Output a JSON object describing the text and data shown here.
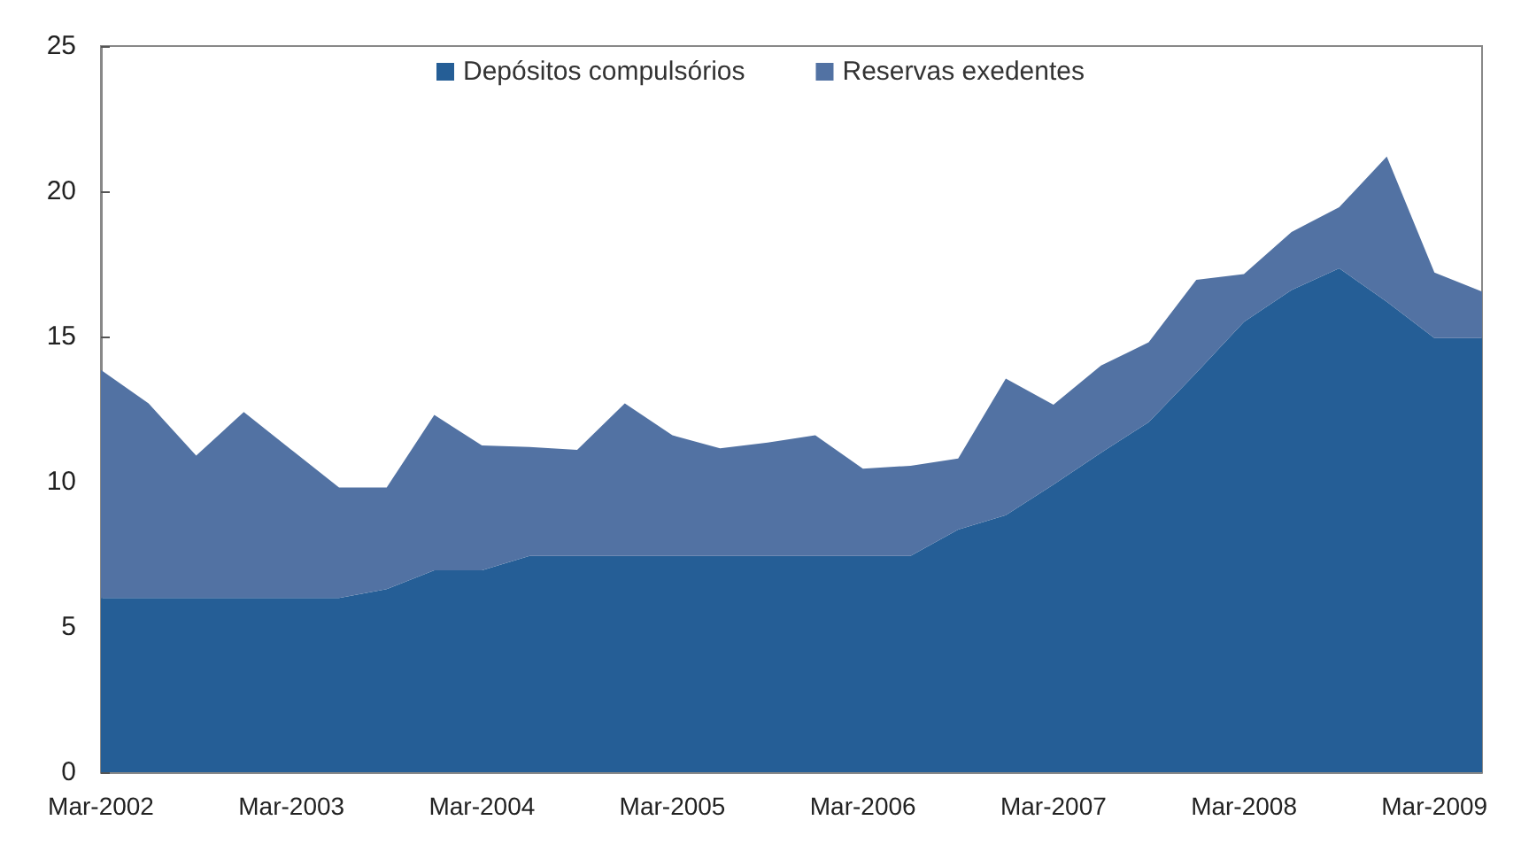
{
  "chart_data": {
    "type": "area",
    "stacked": true,
    "legend": "top",
    "grid": false,
    "categories": [
      "Mar-2002",
      null,
      null,
      null,
      "Mar-2003",
      null,
      null,
      null,
      "Mar-2004",
      null,
      null,
      null,
      "Mar-2005",
      null,
      null,
      null,
      "Mar-2006",
      null,
      null,
      null,
      "Mar-2007",
      null,
      null,
      null,
      "Mar-2008",
      null,
      null,
      null,
      "Mar-2009",
      null
    ],
    "ylim": [
      0,
      25
    ],
    "yticks": [
      0,
      5,
      10,
      15,
      20,
      25
    ],
    "series": [
      {
        "name": "Depósitos compulsórios",
        "color": "#255e96",
        "values": [
          6.0,
          6.0,
          6.0,
          6.0,
          6.0,
          6.0,
          6.3,
          6.95,
          6.95,
          7.45,
          7.45,
          7.45,
          7.45,
          7.45,
          7.45,
          7.45,
          7.45,
          7.45,
          8.35,
          8.85,
          9.9,
          11.0,
          12.05,
          13.75,
          15.5,
          16.6,
          17.35,
          16.2,
          14.95,
          14.95
        ]
      },
      {
        "name": "Reservas exedentes",
        "color": "#5272a3",
        "values": [
          7.85,
          6.7,
          4.9,
          6.4,
          5.1,
          3.8,
          3.5,
          5.35,
          4.3,
          3.75,
          3.65,
          5.25,
          4.15,
          3.7,
          3.9,
          4.15,
          3.0,
          3.1,
          2.45,
          4.7,
          2.75,
          3.0,
          2.75,
          3.2,
          1.65,
          2.0,
          2.1,
          5.0,
          2.25,
          1.6
        ]
      }
    ]
  }
}
